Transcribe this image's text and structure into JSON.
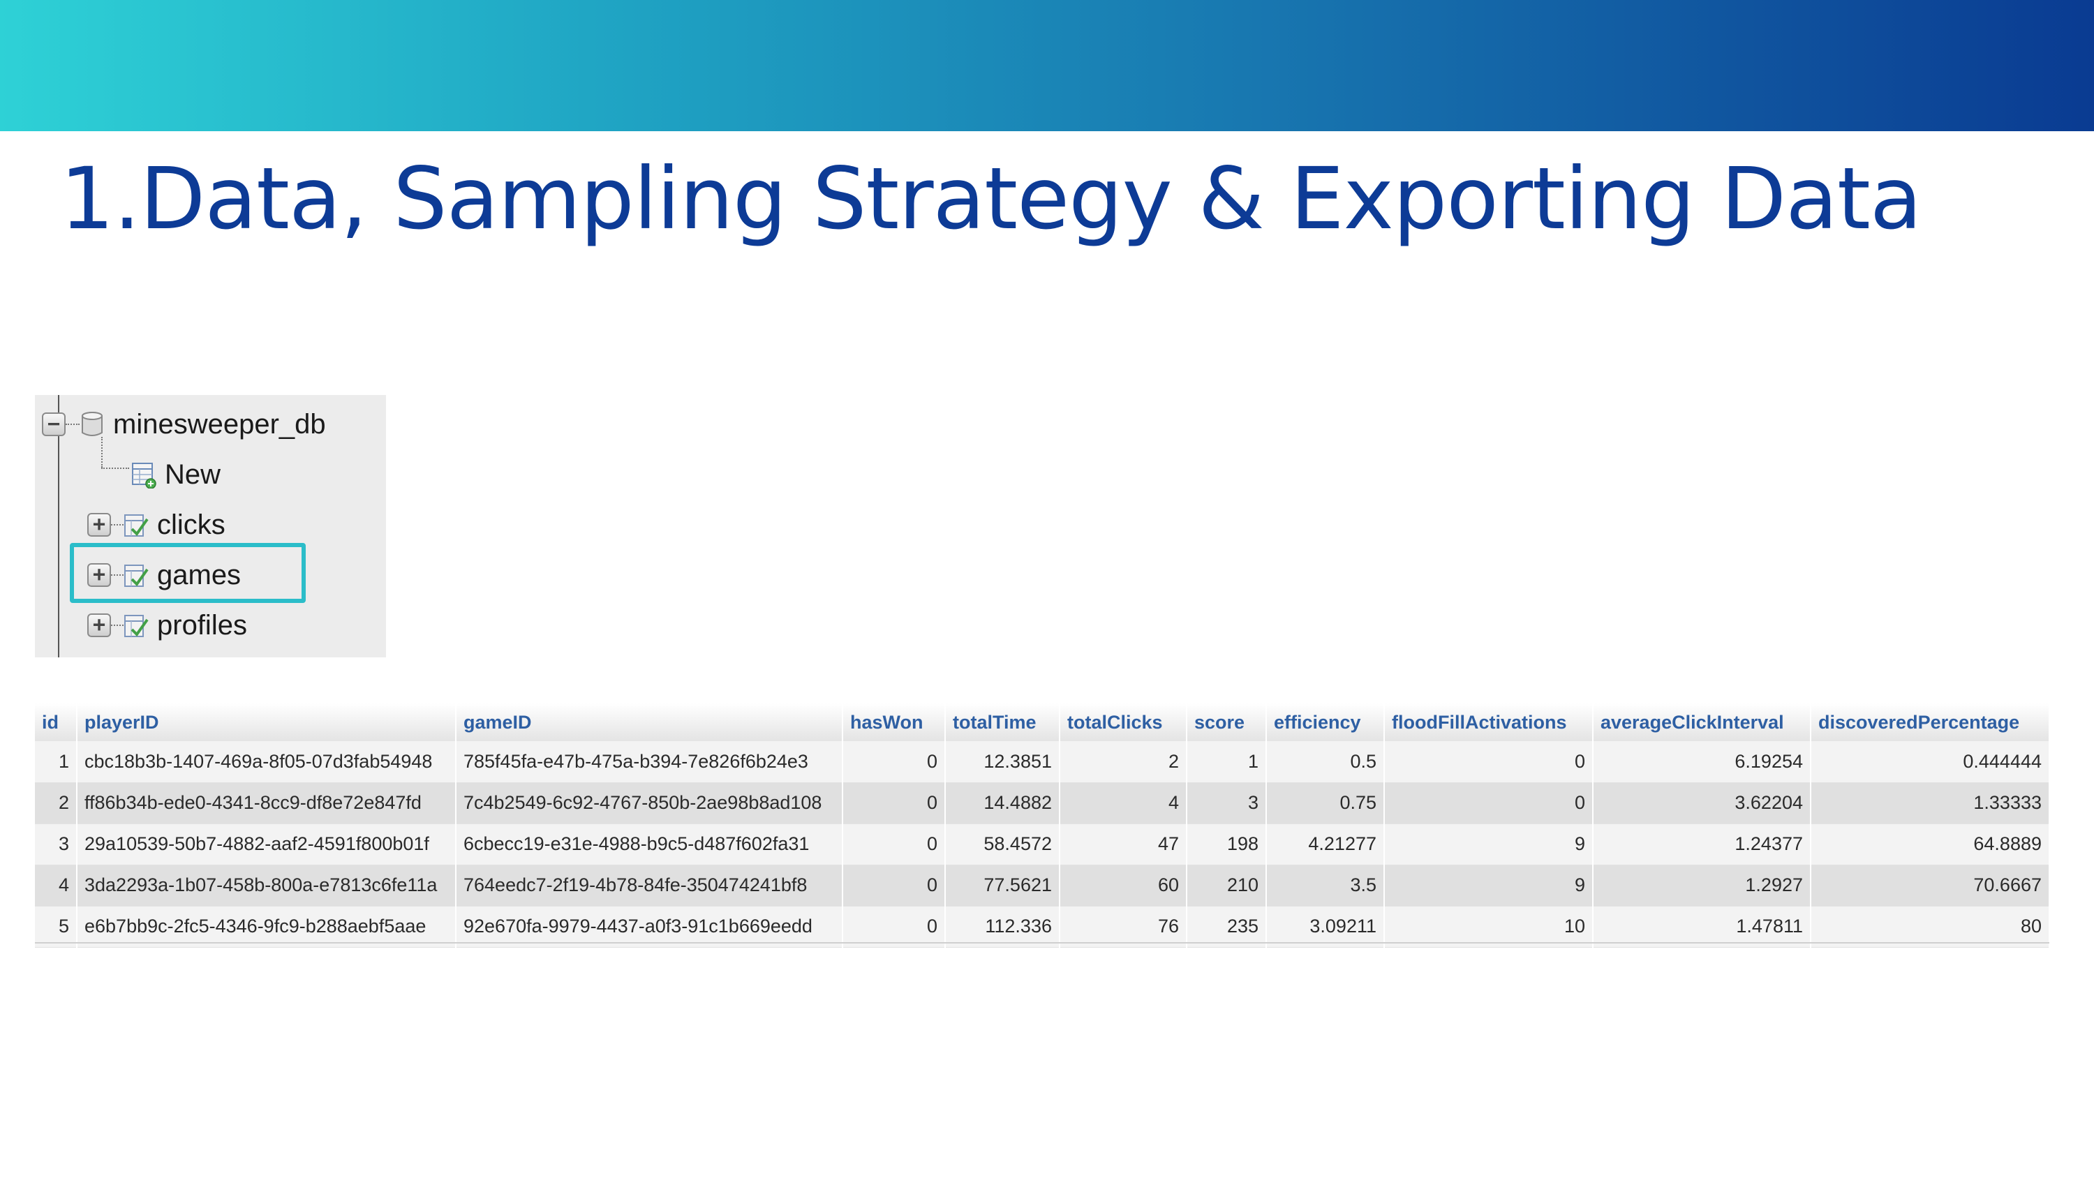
{
  "slide": {
    "title": "1.Data, Sampling Strategy & Exporting Data"
  },
  "tree": {
    "database": "minesweeper_db",
    "items": [
      {
        "label": "New",
        "icon": "new-table-icon"
      },
      {
        "label": "clicks",
        "icon": "table-icon",
        "expand": "+"
      },
      {
        "label": "games",
        "icon": "table-icon",
        "expand": "+",
        "highlighted": true
      },
      {
        "label": "profiles",
        "icon": "table-icon",
        "expand": "+"
      }
    ],
    "collapse_symbol": "−",
    "highlight_color": "#2bbdc9"
  },
  "table": {
    "columns": [
      "id",
      "playerID",
      "gameID",
      "hasWon",
      "totalTime",
      "totalClicks",
      "score",
      "efficiency",
      "floodFillActivations",
      "averageClickInterval",
      "discoveredPercentage"
    ],
    "rows": [
      [
        "1",
        "cbc18b3b-1407-469a-8f05-07d3fab54948",
        "785f45fa-e47b-475a-b394-7e826f6b24e3",
        "0",
        "12.3851",
        "2",
        "1",
        "0.5",
        "0",
        "6.19254",
        "0.444444"
      ],
      [
        "2",
        "ff86b34b-ede0-4341-8cc9-df8e72e847fd",
        "7c4b2549-6c92-4767-850b-2ae98b8ad108",
        "0",
        "14.4882",
        "4",
        "3",
        "0.75",
        "0",
        "3.62204",
        "1.33333"
      ],
      [
        "3",
        "29a10539-50b7-4882-aaf2-4591f800b01f",
        "6cbecc19-e31e-4988-b9c5-d487f602fa31",
        "0",
        "58.4572",
        "47",
        "198",
        "4.21277",
        "9",
        "1.24377",
        "64.8889"
      ],
      [
        "4",
        "3da2293a-1b07-458b-800a-e7813c6fe11a",
        "764eedc7-2f19-4b78-84fe-350474241bf8",
        "0",
        "77.5621",
        "60",
        "210",
        "3.5",
        "9",
        "1.2927",
        "70.6667"
      ],
      [
        "5",
        "e6b7bb9c-2fc5-4346-9fc9-b288aebf5aae",
        "92e670fa-9979-4437-a0f3-91c1b669eedd",
        "0",
        "112.336",
        "76",
        "235",
        "3.09211",
        "10",
        "1.47811",
        "80"
      ]
    ],
    "header_color": "#2e5fa3"
  },
  "colors": {
    "title": "#0d3b96",
    "banner_start": "#2ed1d6",
    "banner_end": "#0a3b92"
  }
}
